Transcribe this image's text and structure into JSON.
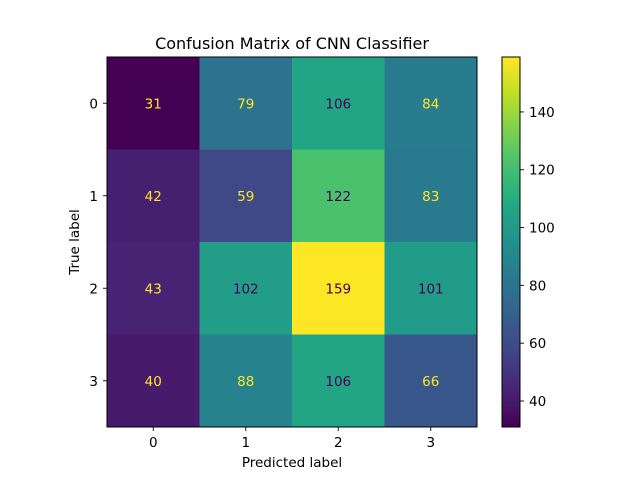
{
  "chart_data": {
    "type": "heatmap",
    "title": "Confusion Matrix of CNN Classifier",
    "xlabel": "Predicted label",
    "ylabel": "True label",
    "x_categories": [
      "0",
      "1",
      "2",
      "3"
    ],
    "y_categories": [
      "0",
      "1",
      "2",
      "3"
    ],
    "values": [
      [
        31,
        79,
        106,
        84
      ],
      [
        42,
        59,
        122,
        83
      ],
      [
        43,
        102,
        159,
        101
      ],
      [
        40,
        88,
        106,
        66
      ]
    ],
    "colorscale": "viridis",
    "value_range": [
      31,
      159
    ],
    "colorbar_ticks": [
      "40",
      "60",
      "80",
      "100",
      "120",
      "140"
    ],
    "annotation_colors": {
      "on_dark": "#fde725",
      "on_light": "#440154"
    }
  }
}
